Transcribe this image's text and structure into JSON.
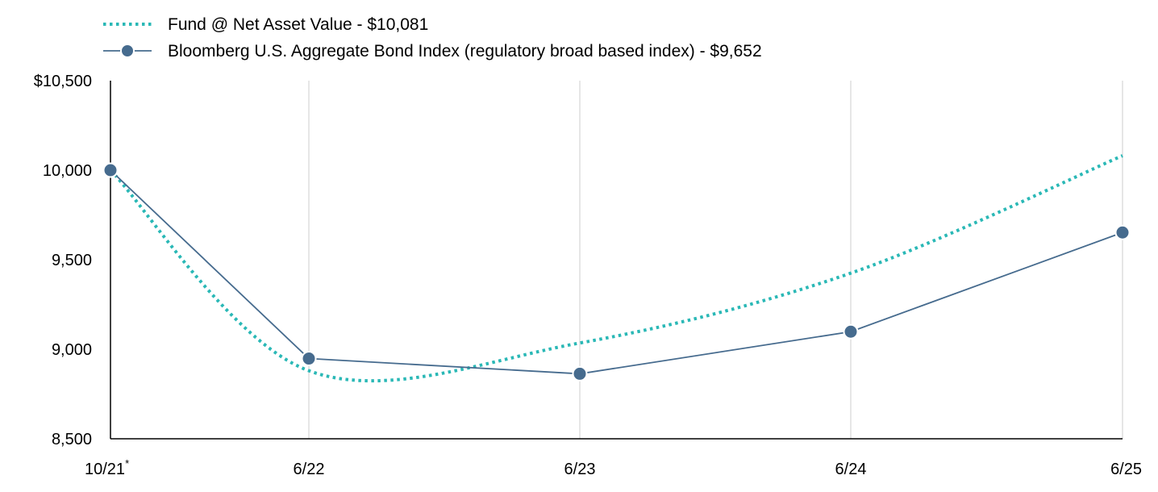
{
  "chart_data": {
    "type": "line",
    "categories": [
      "10/21",
      "6/22",
      "6/23",
      "6/24",
      "6/25"
    ],
    "x_tick_labels": [
      "10/21",
      "6/22",
      "6/23",
      "6/24",
      "6/25"
    ],
    "x_first_tick_marker": "*",
    "y_tick_labels": [
      "$10,500",
      "10,000",
      "9,500",
      "9,000",
      "8,500"
    ],
    "y_ticks": [
      10500,
      10000,
      9500,
      9000,
      8500
    ],
    "ylim": [
      8500,
      10500
    ],
    "grid": "vertical",
    "legend_position": "top-left",
    "series": [
      {
        "name": "Fund @ Net Asset Value - $10,081",
        "style": "dotted",
        "color": "#2ab8b6",
        "values": [
          10000,
          8880,
          9035,
          9425,
          10081
        ]
      },
      {
        "name": "Bloomberg U.S. Aggregate Bond Index (regulatory broad based index) - $9,652",
        "style": "solid-markers",
        "color": "#466b8e",
        "values": [
          10000,
          8948,
          8863,
          9098,
          9652
        ]
      }
    ]
  }
}
